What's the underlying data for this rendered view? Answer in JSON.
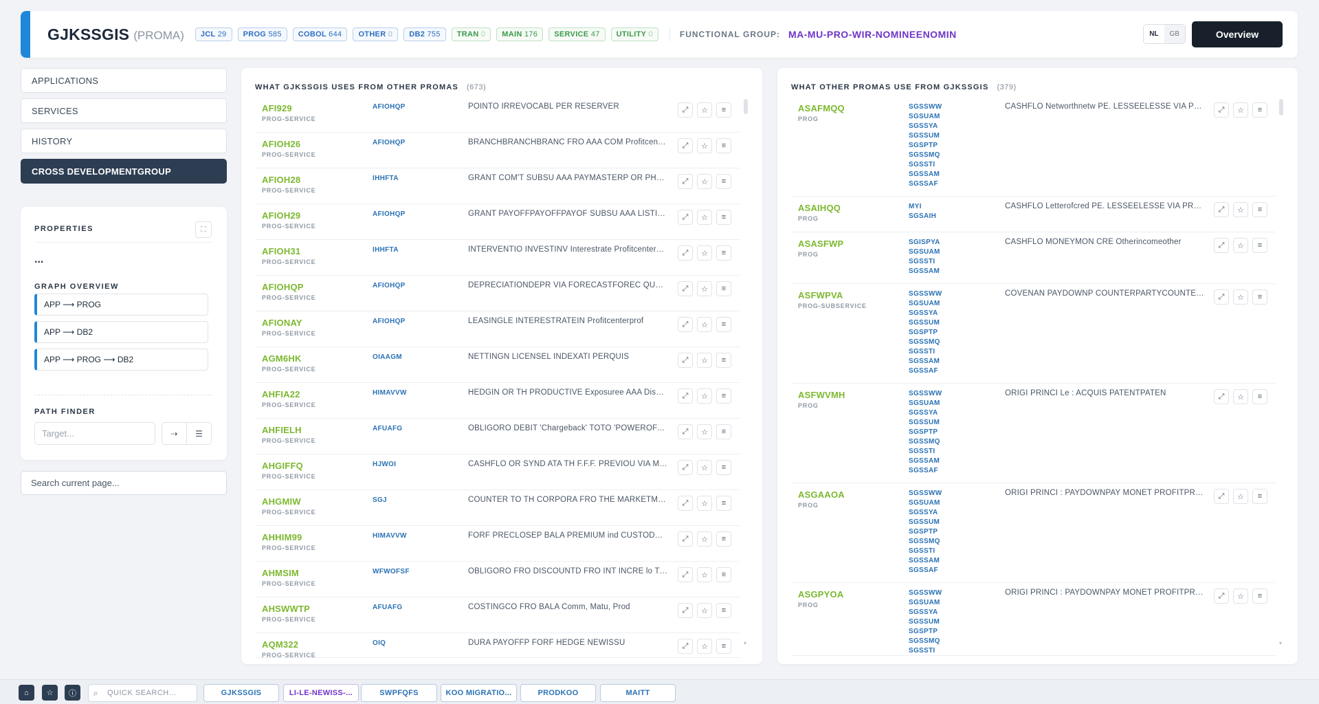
{
  "header": {
    "title": "GJKSSGIS",
    "subtitle": "(PROMA)",
    "chips": [
      {
        "label": "JCL",
        "count": "29",
        "color": "blue"
      },
      {
        "label": "PROG",
        "count": "585",
        "color": "blue"
      },
      {
        "label": "COBOL",
        "count": "644",
        "color": "blue"
      },
      {
        "label": "OTHER",
        "count": "0",
        "color": "blue"
      },
      {
        "label": "DB2",
        "count": "755",
        "color": "blue"
      },
      {
        "label": "TRAN",
        "count": "0",
        "color": "green"
      },
      {
        "label": "MAIN",
        "count": "176",
        "color": "green"
      },
      {
        "label": "SERVICE",
        "count": "47",
        "color": "green"
      },
      {
        "label": "UTILITY",
        "count": "0",
        "color": "green"
      }
    ],
    "functional_group_label": "FUNCTIONAL GROUP:",
    "functional_group_value": "MA-MU-PRO-WIR-NOMINEENOMIN",
    "lang_nl": "NL",
    "lang_gb": "GB",
    "overview_label": "Overview"
  },
  "nav": {
    "items": [
      "APPLICATIONS",
      "SERVICES",
      "HISTORY",
      "CROSS DEVELOPMENTGROUP"
    ],
    "active_index": 3
  },
  "properties": {
    "title": "PROPERTIES",
    "ellipsis": "...",
    "graph_overview_title": "GRAPH OVERVIEW",
    "graph_items": [
      "APP ⟶ PROG",
      "APP ⟶ DB2",
      "APP ⟶ PROG ⟶ DB2"
    ],
    "path_finder_title": "PATH FINDER",
    "target_placeholder": "Target..."
  },
  "search_page_placeholder": "Search current page...",
  "left_panel": {
    "title": "WHAT GJKSSGIS USES FROM OTHER PROMAS",
    "count": "(673)",
    "rows": [
      {
        "name": "AFI929",
        "type": "PROG-SERVICE",
        "module": "AFIOHQP",
        "desc": "POINTO IRREVOCABL PER RESERVER"
      },
      {
        "name": "AFIOH26",
        "type": "PROG-SERVICE",
        "module": "AFIOHQP",
        "desc": "BRANCHBRANCHBRANC FRO AAA COM Profitcenterprof"
      },
      {
        "name": "AFIOH28",
        "type": "PROG-SERVICE",
        "module": "IHHFTA",
        "desc": "GRANT COM'T SUBSU AAA PAYMASTERP OR PHA Profitcenter"
      },
      {
        "name": "AFIOH29",
        "type": "PROG-SERVICE",
        "module": "AFIOHQP",
        "desc": "GRANT PAYOFFPAYOFFPAYOF SUBSU AAA LISTIN OR PHA"
      },
      {
        "name": "AFIOH31",
        "type": "PROG-SERVICE",
        "module": "IHHFTA",
        "desc": "INTERVENTIO INVESTINV Interestrate Profitcenterprof"
      },
      {
        "name": "AFIOHQP",
        "type": "PROG-SERVICE",
        "module": "AFIOHQP",
        "desc": "DEPRECIATIONDEPR VIA FORECASTFOREC QUANTQUANT"
      },
      {
        "name": "AFIONAY",
        "type": "PROG-SERVICE",
        "module": "AFIOHQP",
        "desc": "LEASINGLE INTERESTRATEIN Profitcenterprof"
      },
      {
        "name": "AGM6HK",
        "type": "PROG-SERVICE",
        "module": "OIAAGM",
        "desc": "NETTINGN LICENSEL INDEXATI PERQUIS"
      },
      {
        "name": "AHFIA22",
        "type": "PROG-SERVICE",
        "module": "HIMAVVW",
        "desc": "HEDGIN OR TH PRODUCTIVE Exposuree AAA Discountrate"
      },
      {
        "name": "AHFIELH",
        "type": "PROG-SERVICE",
        "module": "AFUAFG",
        "desc": "OBLIGORO DEBIT 'Chargeback' TOTO 'POWEROFA' CUSTOD"
      },
      {
        "name": "AHGIFFQ",
        "type": "PROG-SERVICE",
        "module": "HJWOI",
        "desc": "CASHFLO OR SYND ATA TH F.F.F. PREVIOU VIA MONEYMON"
      },
      {
        "name": "AHGMIW",
        "type": "PROG-SERVICE",
        "module": "SGJ",
        "desc": "COUNTER TO TH CORPORA FRO THE MARKETM LESSEELESSE"
      },
      {
        "name": "AHHIM99",
        "type": "PROG-SERVICE",
        "module": "HIMAVVW",
        "desc": "FORF PRECLOSEP BALA PREMIUM ind CUSTODYC OR HEDGE"
      },
      {
        "name": "AHMSIM",
        "type": "PROG-SERVICE",
        "module": "WFWOFSF",
        "desc": "OBLIGORO FRO DISCOUNTD FRO INT INCRE lo TOTO ACCRUAL"
      },
      {
        "name": "AHSWWTP",
        "type": "PROG-SERVICE",
        "module": "AFUAFG",
        "desc": "COSTINGCO FRO BALA Comm, Matu, Prod"
      },
      {
        "name": "AQM322",
        "type": "PROG-SERVICE",
        "module": "OIQ",
        "desc": "DURA PAYOFFP FORF HEDGE NEWISSU"
      }
    ]
  },
  "right_panel": {
    "title": "WHAT OTHER PROMAS USE FROM GJKSSGIS",
    "count": "(379)",
    "rows": [
      {
        "name": "ASAFMQQ",
        "type": "PROG",
        "modules": [
          "SGSSWW",
          "SGSUAM",
          "SGSSYA",
          "SGSSUM",
          "SGSPTP",
          "SGSSMQ",
          "SGSSTI",
          "SGSSAM",
          "SGSSAF"
        ],
        "desc": "CASHFLO Networthnetw PE. LESSEELESSE VIA PRACTICEPR"
      },
      {
        "name": "ASAIHQQ",
        "type": "PROG",
        "modules": [
          "MYI",
          "SGSAIH"
        ],
        "desc": "CASHFLO Letterofcred PE. LESSEELESSE VIA PRACTICEPR"
      },
      {
        "name": "ASASFWP",
        "type": "PROG",
        "modules": [
          "SGISPYA",
          "SGSUAM",
          "SGSSTI",
          "SGSSAM"
        ],
        "desc": "CASHFLO MONEYMON CRE Otherincomeother"
      },
      {
        "name": "ASFWPVA",
        "type": "PROG-SUBSERVICE",
        "modules": [
          "SGSSWW",
          "SGSUAM",
          "SGSSYA",
          "SGSSUM",
          "SGSPTP",
          "SGSSMQ",
          "SGSSTI",
          "SGSSAM",
          "SGSSAF"
        ],
        "desc": "COVENAN PAYDOWNP COUNTERPARTYCOUNTER FORFAITINGFO"
      },
      {
        "name": "ASFWVMH",
        "type": "PROG",
        "modules": [
          "SGSSWW",
          "SGSUAM",
          "SGSSYA",
          "SGSSUM",
          "SGSPTP",
          "SGSSMQ",
          "SGSSTI",
          "SGSSAM",
          "SGSSAF"
        ],
        "desc": "ORIGI PRINCI Le : ACQUIS PATENTPATEN"
      },
      {
        "name": "ASGAAOA",
        "type": "PROG",
        "modules": [
          "SGSSWW",
          "SGSUAM",
          "SGSSYA",
          "SGSSUM",
          "SGSPTP",
          "SGSSMQ",
          "SGSSTI",
          "SGSSAM",
          "SGSSAF"
        ],
        "desc": "ORIGI PRINCI : PAYDOWNPAY MONET PROFITPRO PROFITPRO"
      },
      {
        "name": "ASGPYOA",
        "type": "PROG",
        "modules": [
          "SGSSWW",
          "SGSUAM",
          "SGSSYA",
          "SGSSUM",
          "SGSPTP",
          "SGSSMQ",
          "SGSSTI"
        ],
        "desc": "ORIGI PRINCI : PAYDOWNPAY MONET PROFITPRO PROFITPRO"
      }
    ]
  },
  "bottom_bar": {
    "search_placeholder": "QUICK SEARCH...",
    "tabs": [
      "GJKSSGIS",
      "LI-LE-NEWISS-...",
      "SWPFQFS",
      "KOO MIGRATIO...",
      "PRODKOO",
      "MAITT"
    ]
  }
}
